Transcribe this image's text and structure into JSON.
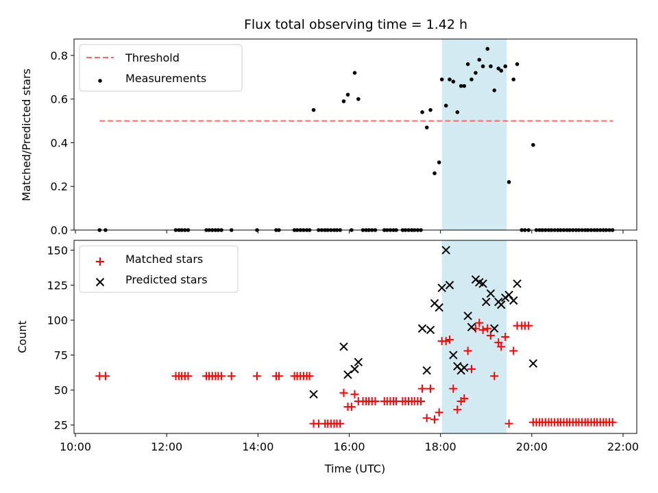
{
  "chart_data": [
    {
      "type": "scatter",
      "title": "Flux total observing time = 1.42 h",
      "xlabel": "",
      "ylabel": "Matched/Predicted stars",
      "ylim": [
        0,
        0.875
      ],
      "yticks": [
        "0.0",
        "0.2",
        "0.4",
        "0.6",
        "0.8"
      ],
      "x_axis_type": "time (hours)",
      "xlim": [
        9.97,
        22.3
      ],
      "xticks": [
        "10:00",
        "12:00",
        "14:00",
        "16:00",
        "18:00",
        "20:00",
        "22:00"
      ],
      "shaded_interval": {
        "start": 18.03,
        "end": 19.45,
        "color": "#add8e6"
      },
      "legend": {
        "placement": "upper left"
      },
      "threshold": {
        "name": "Threshold",
        "value": 0.5,
        "x_start": 10.53,
        "x_end": 21.78,
        "color": "#ff6666",
        "style": "dashed"
      },
      "series": [
        {
          "name": "Measurements",
          "color": "#000000",
          "marker": "dot",
          "points": [
            [
              10.53,
              0
            ],
            [
              10.66,
              0
            ],
            [
              12.2,
              0
            ],
            [
              12.27,
              0
            ],
            [
              12.33,
              0
            ],
            [
              12.4,
              0
            ],
            [
              12.47,
              0
            ],
            [
              12.87,
              0
            ],
            [
              12.93,
              0
            ],
            [
              13.0,
              0
            ],
            [
              13.07,
              0
            ],
            [
              13.13,
              0
            ],
            [
              13.2,
              0
            ],
            [
              13.42,
              0
            ],
            [
              13.98,
              0
            ],
            [
              14.4,
              0
            ],
            [
              14.46,
              0
            ],
            [
              14.8,
              0
            ],
            [
              14.86,
              0
            ],
            [
              14.93,
              0
            ],
            [
              15.0,
              0
            ],
            [
              15.07,
              0
            ],
            [
              15.13,
              0
            ],
            [
              15.22,
              0.55
            ],
            [
              15.33,
              0
            ],
            [
              15.4,
              0
            ],
            [
              15.47,
              0
            ],
            [
              15.53,
              0
            ],
            [
              15.6,
              0
            ],
            [
              15.67,
              0
            ],
            [
              15.73,
              0
            ],
            [
              15.8,
              0
            ],
            [
              15.88,
              0.59
            ],
            [
              15.97,
              0.62
            ],
            [
              16.05,
              0
            ],
            [
              16.12,
              0.72
            ],
            [
              16.2,
              0.6
            ],
            [
              16.3,
              0
            ],
            [
              16.37,
              0
            ],
            [
              16.43,
              0
            ],
            [
              16.5,
              0
            ],
            [
              16.57,
              0
            ],
            [
              16.77,
              0
            ],
            [
              16.83,
              0
            ],
            [
              16.9,
              0
            ],
            [
              16.97,
              0
            ],
            [
              17.03,
              0
            ],
            [
              17.17,
              0
            ],
            [
              17.23,
              0
            ],
            [
              17.3,
              0
            ],
            [
              17.37,
              0
            ],
            [
              17.43,
              0
            ],
            [
              17.5,
              0
            ],
            [
              17.57,
              0
            ],
            [
              17.6,
              0.54
            ],
            [
              17.7,
              0.47
            ],
            [
              17.78,
              0.55
            ],
            [
              17.87,
              0.26
            ],
            [
              17.97,
              0.31
            ],
            [
              18.03,
              0.69
            ],
            [
              18.12,
              0.57
            ],
            [
              18.2,
              0.69
            ],
            [
              18.28,
              0.68
            ],
            [
              18.37,
              0.54
            ],
            [
              18.45,
              0.66
            ],
            [
              18.52,
              0.66
            ],
            [
              18.6,
              0.76
            ],
            [
              18.68,
              0.69
            ],
            [
              18.77,
              0.72
            ],
            [
              18.85,
              0.78
            ],
            [
              18.93,
              0.75
            ],
            [
              19.03,
              0.83
            ],
            [
              19.1,
              0.75
            ],
            [
              19.18,
              0.64
            ],
            [
              19.27,
              0.74
            ],
            [
              19.33,
              0.73
            ],
            [
              19.42,
              0.75
            ],
            [
              19.5,
              0.22
            ],
            [
              19.6,
              0.69
            ],
            [
              19.68,
              0.76
            ],
            [
              19.78,
              0
            ],
            [
              19.85,
              0
            ],
            [
              19.93,
              0
            ],
            [
              20.03,
              0.39
            ],
            [
              20.1,
              0
            ],
            [
              20.17,
              0
            ],
            [
              20.23,
              0
            ],
            [
              20.3,
              0
            ],
            [
              20.37,
              0
            ],
            [
              20.43,
              0
            ],
            [
              20.5,
              0
            ],
            [
              20.57,
              0
            ],
            [
              20.63,
              0
            ],
            [
              20.7,
              0
            ],
            [
              20.77,
              0
            ],
            [
              20.83,
              0
            ],
            [
              20.9,
              0
            ],
            [
              20.97,
              0
            ],
            [
              21.03,
              0
            ],
            [
              21.1,
              0
            ],
            [
              21.17,
              0
            ],
            [
              21.23,
              0
            ],
            [
              21.3,
              0
            ],
            [
              21.37,
              0
            ],
            [
              21.43,
              0
            ],
            [
              21.5,
              0
            ],
            [
              21.57,
              0
            ],
            [
              21.63,
              0
            ],
            [
              21.7,
              0
            ],
            [
              21.77,
              0
            ]
          ]
        }
      ]
    },
    {
      "type": "scatter",
      "title": "",
      "xlabel": "Time (UTC)",
      "ylabel": "Count",
      "ylim": [
        19,
        157
      ],
      "yticks": [
        "25",
        "50",
        "75",
        "100",
        "125",
        "150"
      ],
      "x_axis_type": "time (hours)",
      "xlim": [
        9.97,
        22.3
      ],
      "xticks": [
        "10:00",
        "12:00",
        "14:00",
        "16:00",
        "18:00",
        "20:00",
        "22:00"
      ],
      "shaded_interval": {
        "start": 18.03,
        "end": 19.45,
        "color": "#add8e6"
      },
      "legend": {
        "placement": "upper left"
      },
      "series": [
        {
          "name": "Matched stars",
          "color": "#ff0000",
          "marker": "plus",
          "points": [
            [
              10.53,
              60
            ],
            [
              10.66,
              60
            ],
            [
              12.2,
              60
            ],
            [
              12.27,
              60
            ],
            [
              12.33,
              60
            ],
            [
              12.4,
              60
            ],
            [
              12.47,
              60
            ],
            [
              12.87,
              60
            ],
            [
              12.93,
              60
            ],
            [
              13.0,
              60
            ],
            [
              13.07,
              60
            ],
            [
              13.13,
              60
            ],
            [
              13.2,
              60
            ],
            [
              13.42,
              60
            ],
            [
              13.98,
              60
            ],
            [
              14.4,
              60
            ],
            [
              14.46,
              60
            ],
            [
              14.8,
              60
            ],
            [
              14.86,
              60
            ],
            [
              14.93,
              60
            ],
            [
              15.0,
              60
            ],
            [
              15.07,
              60
            ],
            [
              15.13,
              60
            ],
            [
              15.22,
              26
            ],
            [
              15.33,
              26
            ],
            [
              15.47,
              26
            ],
            [
              15.53,
              26
            ],
            [
              15.6,
              26
            ],
            [
              15.67,
              26
            ],
            [
              15.73,
              26
            ],
            [
              15.8,
              26
            ],
            [
              15.88,
              48
            ],
            [
              15.97,
              38
            ],
            [
              16.05,
              38
            ],
            [
              16.12,
              47
            ],
            [
              16.2,
              42
            ],
            [
              16.3,
              42
            ],
            [
              16.37,
              42
            ],
            [
              16.43,
              42
            ],
            [
              16.5,
              42
            ],
            [
              16.57,
              42
            ],
            [
              16.77,
              42
            ],
            [
              16.83,
              42
            ],
            [
              16.9,
              42
            ],
            [
              16.97,
              42
            ],
            [
              17.03,
              42
            ],
            [
              17.17,
              42
            ],
            [
              17.23,
              42
            ],
            [
              17.3,
              42
            ],
            [
              17.37,
              42
            ],
            [
              17.43,
              42
            ],
            [
              17.5,
              42
            ],
            [
              17.57,
              42
            ],
            [
              17.6,
              51
            ],
            [
              17.7,
              30
            ],
            [
              17.78,
              51
            ],
            [
              17.87,
              29
            ],
            [
              17.97,
              34
            ],
            [
              18.03,
              85
            ],
            [
              18.12,
              85
            ],
            [
              18.2,
              86
            ],
            [
              18.28,
              51
            ],
            [
              18.37,
              36
            ],
            [
              18.45,
              42
            ],
            [
              18.52,
              44
            ],
            [
              18.6,
              78
            ],
            [
              18.68,
              65
            ],
            [
              18.77,
              94
            ],
            [
              18.85,
              98
            ],
            [
              18.93,
              93
            ],
            [
              19.03,
              94
            ],
            [
              19.1,
              89
            ],
            [
              19.18,
              60
            ],
            [
              19.27,
              84
            ],
            [
              19.33,
              81
            ],
            [
              19.42,
              88
            ],
            [
              19.5,
              26
            ],
            [
              19.6,
              78
            ],
            [
              19.68,
              96
            ],
            [
              19.78,
              96
            ],
            [
              19.85,
              96
            ],
            [
              19.93,
              96
            ],
            [
              20.03,
              27
            ],
            [
              20.1,
              27
            ],
            [
              20.17,
              27
            ],
            [
              20.23,
              27
            ],
            [
              20.3,
              27
            ],
            [
              20.37,
              27
            ],
            [
              20.43,
              27
            ],
            [
              20.5,
              27
            ],
            [
              20.57,
              27
            ],
            [
              20.63,
              27
            ],
            [
              20.7,
              27
            ],
            [
              20.77,
              27
            ],
            [
              20.83,
              27
            ],
            [
              20.9,
              27
            ],
            [
              20.97,
              27
            ],
            [
              21.03,
              27
            ],
            [
              21.1,
              27
            ],
            [
              21.17,
              27
            ],
            [
              21.23,
              27
            ],
            [
              21.3,
              27
            ],
            [
              21.37,
              27
            ],
            [
              21.43,
              27
            ],
            [
              21.5,
              27
            ],
            [
              21.57,
              27
            ],
            [
              21.63,
              27
            ],
            [
              21.7,
              27
            ],
            [
              21.77,
              27
            ]
          ]
        },
        {
          "name": "Predicted stars",
          "color": "#000000",
          "marker": "x",
          "points": [
            [
              15.22,
              47
            ],
            [
              15.88,
              81
            ],
            [
              15.97,
              61
            ],
            [
              16.12,
              65
            ],
            [
              16.2,
              70
            ],
            [
              17.6,
              94
            ],
            [
              17.7,
              64
            ],
            [
              17.78,
              93
            ],
            [
              17.87,
              112
            ],
            [
              17.97,
              109
            ],
            [
              18.03,
              123
            ],
            [
              18.12,
              150
            ],
            [
              18.2,
              125
            ],
            [
              18.28,
              75
            ],
            [
              18.37,
              67
            ],
            [
              18.45,
              64
            ],
            [
              18.52,
              66
            ],
            [
              18.6,
              103
            ],
            [
              18.68,
              95
            ],
            [
              18.77,
              129
            ],
            [
              18.85,
              127
            ],
            [
              18.93,
              126
            ],
            [
              19.0,
              113
            ],
            [
              19.1,
              119
            ],
            [
              19.18,
              94
            ],
            [
              19.27,
              113
            ],
            [
              19.33,
              111
            ],
            [
              19.42,
              116
            ],
            [
              19.5,
              118
            ],
            [
              19.6,
              114
            ],
            [
              19.68,
              126
            ],
            [
              20.03,
              69
            ]
          ]
        }
      ]
    }
  ]
}
